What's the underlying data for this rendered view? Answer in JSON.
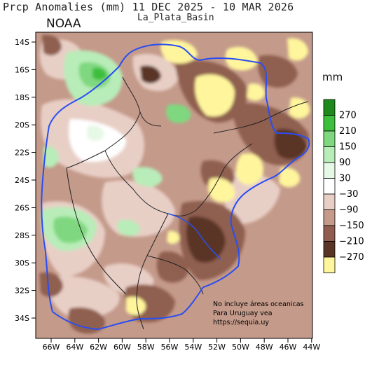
{
  "title": "Prcp Anomalies (mm) 11 DEC 2025 - 10 MAR 2026",
  "subtitle": "La_Plata_Basin",
  "agency": "NOAA",
  "note": [
    "No incluye áreas oceanicas",
    "Para Uruguay vea",
    "https://sequia.uy"
  ],
  "legend": {
    "unit": "mm",
    "labels": [
      "270",
      "210",
      "150",
      "90",
      "30",
      "−30",
      "−90",
      "−150",
      "−210",
      "−270"
    ],
    "colors": [
      "#1e8a1e",
      "#3cbf3c",
      "#7fd87f",
      "#b8ecb8",
      "#e6f8e6",
      "#ffffff",
      "#e8cfc6",
      "#c49a8a",
      "#8f5e50",
      "#5a3526",
      "#fff59c"
    ]
  },
  "axes": {
    "lat_labels": [
      "14S",
      "16S",
      "18S",
      "20S",
      "22S",
      "24S",
      "26S",
      "28S",
      "30S",
      "32S",
      "34S"
    ],
    "lon_labels": [
      "66W",
      "64W",
      "62W",
      "60W",
      "58W",
      "56W",
      "54W",
      "52W",
      "50W",
      "48W",
      "46W",
      "44W"
    ]
  },
  "map_colors": {
    "basin_outline": "#2a4ef0",
    "borders": "#222222"
  }
}
